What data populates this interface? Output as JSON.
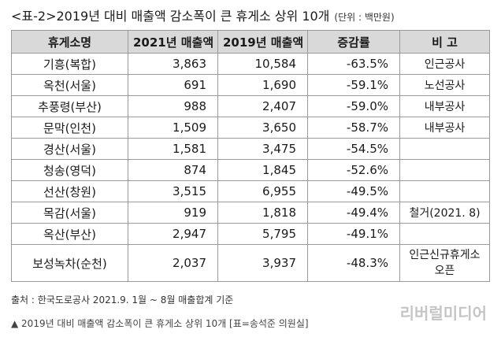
{
  "title": {
    "text": "<표-2>2019년 대비 매출액 감소폭이 큰 휴게소 상위 10개",
    "unit": "(단위 : 백만원)"
  },
  "table": {
    "headers": [
      "휴게소명",
      "2021년 매출액",
      "2019년 매출액",
      "증감률",
      "비 고"
    ],
    "rows": [
      [
        "기흥(복합)",
        "3,863",
        "10,584",
        "-63.5%",
        "인근공사"
      ],
      [
        "옥천(서울)",
        "691",
        "1,690",
        "-59.1%",
        "노선공사"
      ],
      [
        "추풍령(부산)",
        "988",
        "2,407",
        "-59.0%",
        "내부공사"
      ],
      [
        "문막(인천)",
        "1,509",
        "3,650",
        "-58.7%",
        "내부공사"
      ],
      [
        "경산(서울)",
        "1,581",
        "3,475",
        "-54.5%",
        ""
      ],
      [
        "청송(영덕)",
        "874",
        "1,845",
        "-52.6%",
        ""
      ],
      [
        "선산(창원)",
        "3,515",
        "6,955",
        "-49.5%",
        ""
      ],
      [
        "목감(서울)",
        "919",
        "1,818",
        "-49.4%",
        "철거(2021. 8)"
      ],
      [
        "옥산(부산)",
        "2,947",
        "5,795",
        "-49.1%",
        ""
      ],
      [
        "보성녹차(순천)",
        "2,037",
        "3,937",
        "-48.3%",
        "인근신규휴게소 오픈"
      ]
    ]
  },
  "source": "출처 : 한국도로공사 2021.9. 1월 ~ 8월 매출합계 기준",
  "watermark": "리버럴미디어",
  "caption": "▲ 2019년 대비 매출액 감소폭이 큰 휴게소 상위 10개 [표=송석준 의원실]"
}
